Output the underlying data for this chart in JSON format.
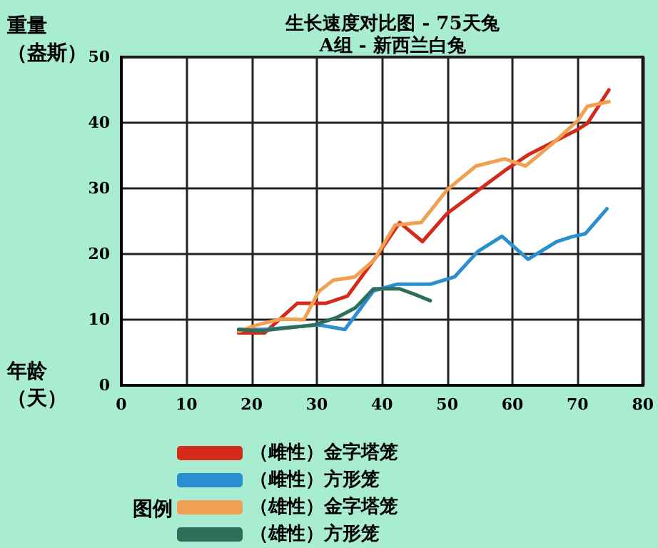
{
  "chart_data": {
    "type": "line",
    "title": "生长速度对比图 - 75天兔",
    "subtitle": "A组 - 新西兰白兔",
    "xlabel": "年龄（天）",
    "ylabel": "重量（盎斯）",
    "legend_title": "图例",
    "xlim": [
      0,
      80
    ],
    "xticks": [
      0,
      10,
      20,
      30,
      40,
      50,
      60,
      70,
      80
    ],
    "ylim": [
      0,
      50
    ],
    "yticks": [
      0,
      10,
      20,
      30,
      40,
      50
    ],
    "grid": true,
    "legend": "bottom",
    "marker": "none",
    "series": [
      {
        "name": "（雌性）金字塔笼",
        "color": "#d42a1a",
        "x": [
          18,
          22,
          27,
          31.4,
          34.7,
          39.4,
          42.7,
          46.2,
          50,
          58.8,
          62.4,
          69.7,
          71.5,
          74.8
        ],
        "values": [
          8,
          8,
          12.5,
          12.5,
          13.6,
          20,
          24.8,
          21.9,
          26.2,
          32.7,
          35.1,
          38.8,
          39.9,
          45
        ]
      },
      {
        "name": "（雌性）方形笼",
        "color": "#2a8fd0",
        "x": [
          18,
          22,
          30.3,
          34.3,
          38.7,
          42.3,
          47.4,
          51.1,
          54.7,
          58.4,
          62.4,
          66.8,
          69,
          71.2,
          74.5
        ],
        "values": [
          8.5,
          8.5,
          9.2,
          8.5,
          14.4,
          15.4,
          15.4,
          16.5,
          20.4,
          22.7,
          19.2,
          21.9,
          22.6,
          23.1,
          26.9
        ]
      },
      {
        "name": "（雄性）金字塔笼",
        "color": "#f0a050",
        "x": [
          18,
          20.8,
          24.5,
          28,
          30.3,
          32.5,
          35.8,
          38.7,
          42,
          46,
          50,
          54.4,
          58.8,
          62,
          66,
          70,
          71.5,
          74.8
        ],
        "values": [
          8.2,
          9.2,
          10.1,
          10,
          14.3,
          16,
          16.5,
          19,
          24.4,
          24.8,
          29.8,
          33.4,
          34.5,
          33.4,
          36.7,
          40.3,
          42.5,
          43.2
        ]
      },
      {
        "name": "（雄性）方形笼",
        "color": "#2e6e5a",
        "x": [
          18,
          21.5,
          29.6,
          33,
          35.9,
          38.7,
          42.7,
          44.9,
          47.4
        ],
        "values": [
          8.5,
          8.3,
          9.2,
          10.3,
          11.8,
          14.7,
          14.7,
          13.9,
          12.9
        ]
      }
    ]
  }
}
